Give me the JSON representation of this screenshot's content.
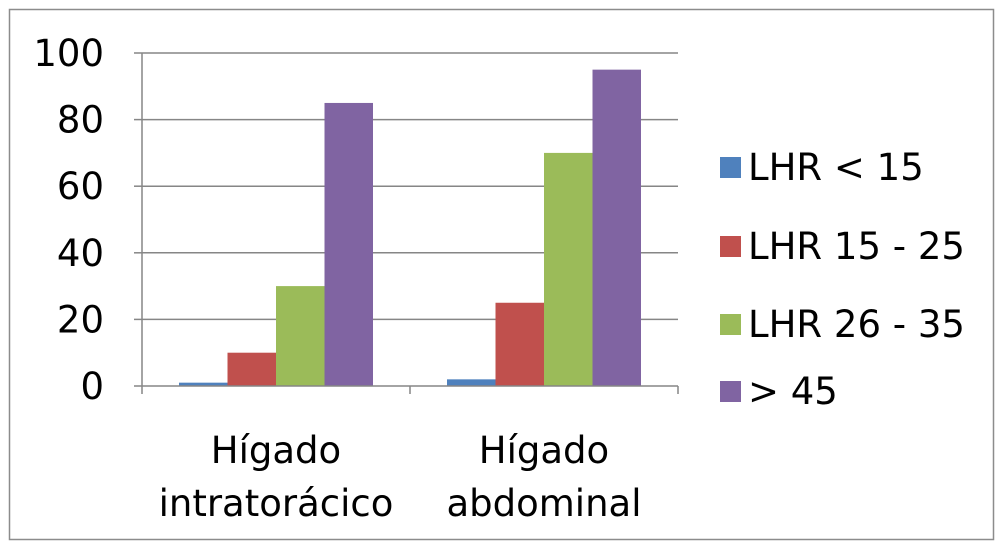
{
  "chart_data": {
    "type": "bar",
    "categories": [
      [
        "Hígado",
        "intratorácico"
      ],
      [
        "Hígado",
        "abdominal"
      ]
    ],
    "series": [
      {
        "name": "LHR < 15",
        "color": "#4f81bd",
        "values": [
          1,
          2
        ]
      },
      {
        "name": "LHR 15 - 25",
        "color": "#c0504d",
        "values": [
          10,
          25
        ]
      },
      {
        "name": "LHR 26 - 35",
        "color": "#9bbb59",
        "values": [
          30,
          70
        ]
      },
      {
        "name": "> 45",
        "color": "#8064a2",
        "values": [
          85,
          95
        ]
      }
    ],
    "ylim": [
      0,
      100
    ],
    "yticks": [
      "0",
      "20",
      "40",
      "60",
      "80",
      "100"
    ],
    "grid": true,
    "legend_position": "right"
  }
}
